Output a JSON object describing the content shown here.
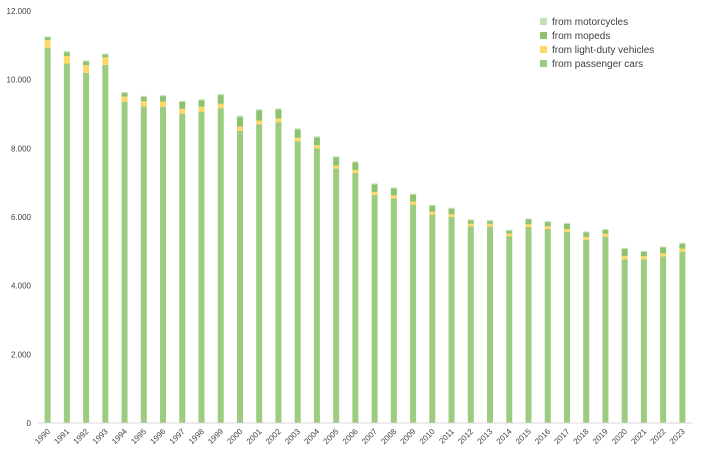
{
  "chart_data": {
    "type": "bar",
    "stacked": true,
    "title": "",
    "xlabel": "",
    "ylabel": "",
    "ylim": [
      0,
      12000
    ],
    "yticks": [
      0,
      2000,
      4000,
      6000,
      8000,
      10000,
      12000
    ],
    "ytick_labels": [
      "0",
      "2.000",
      "4.000",
      "6.000",
      "8.000",
      "10.000",
      "12.000"
    ],
    "grid": false,
    "legend_position": "top-right",
    "categories": [
      "1990",
      "1991",
      "1992",
      "1993",
      "1994",
      "1995",
      "1996",
      "1997",
      "1998",
      "1999",
      "2000",
      "2001",
      "2002",
      "2003",
      "2004",
      "2005",
      "2006",
      "2007",
      "2008",
      "2009",
      "2010",
      "2011",
      "2012",
      "2013",
      "2014",
      "2015",
      "2016",
      "2017",
      "2018",
      "2019",
      "2020",
      "2021",
      "2022",
      "2023"
    ],
    "series": [
      {
        "name": "from passenger cars",
        "color": "#9dcb82",
        "values": [
          10930,
          10470,
          10200,
          10430,
          9350,
          9220,
          9210,
          9010,
          9070,
          9170,
          8510,
          8700,
          8760,
          8210,
          8000,
          7410,
          7280,
          6640,
          6540,
          6360,
          6070,
          6000,
          5730,
          5720,
          5440,
          5710,
          5650,
          5570,
          5340,
          5430,
          4770,
          4770,
          4850,
          4990
        ]
      },
      {
        "name": "from light-duty vehicles",
        "color": "#ffd866",
        "values": [
          220,
          220,
          220,
          220,
          160,
          150,
          150,
          140,
          140,
          130,
          120,
          110,
          110,
          100,
          90,
          90,
          90,
          90,
          90,
          90,
          80,
          80,
          80,
          80,
          80,
          80,
          80,
          80,
          80,
          80,
          90,
          90,
          90,
          90
        ]
      },
      {
        "name": "from mopeds",
        "color": "#8cc371",
        "values": [
          80,
          110,
          110,
          80,
          100,
          130,
          160,
          200,
          190,
          250,
          280,
          300,
          260,
          240,
          230,
          240,
          220,
          220,
          200,
          200,
          170,
          160,
          90,
          80,
          80,
          140,
          120,
          150,
          130,
          110,
          210,
          120,
          170,
          140
        ]
      },
      {
        "name": "from motorcycles",
        "color": "#c5e0b4",
        "values": [
          30,
          30,
          30,
          30,
          30,
          30,
          30,
          30,
          30,
          30,
          40,
          30,
          30,
          30,
          30,
          30,
          30,
          30,
          30,
          30,
          30,
          30,
          30,
          30,
          30,
          30,
          30,
          30,
          30,
          30,
          30,
          30,
          30,
          30
        ]
      }
    ]
  }
}
